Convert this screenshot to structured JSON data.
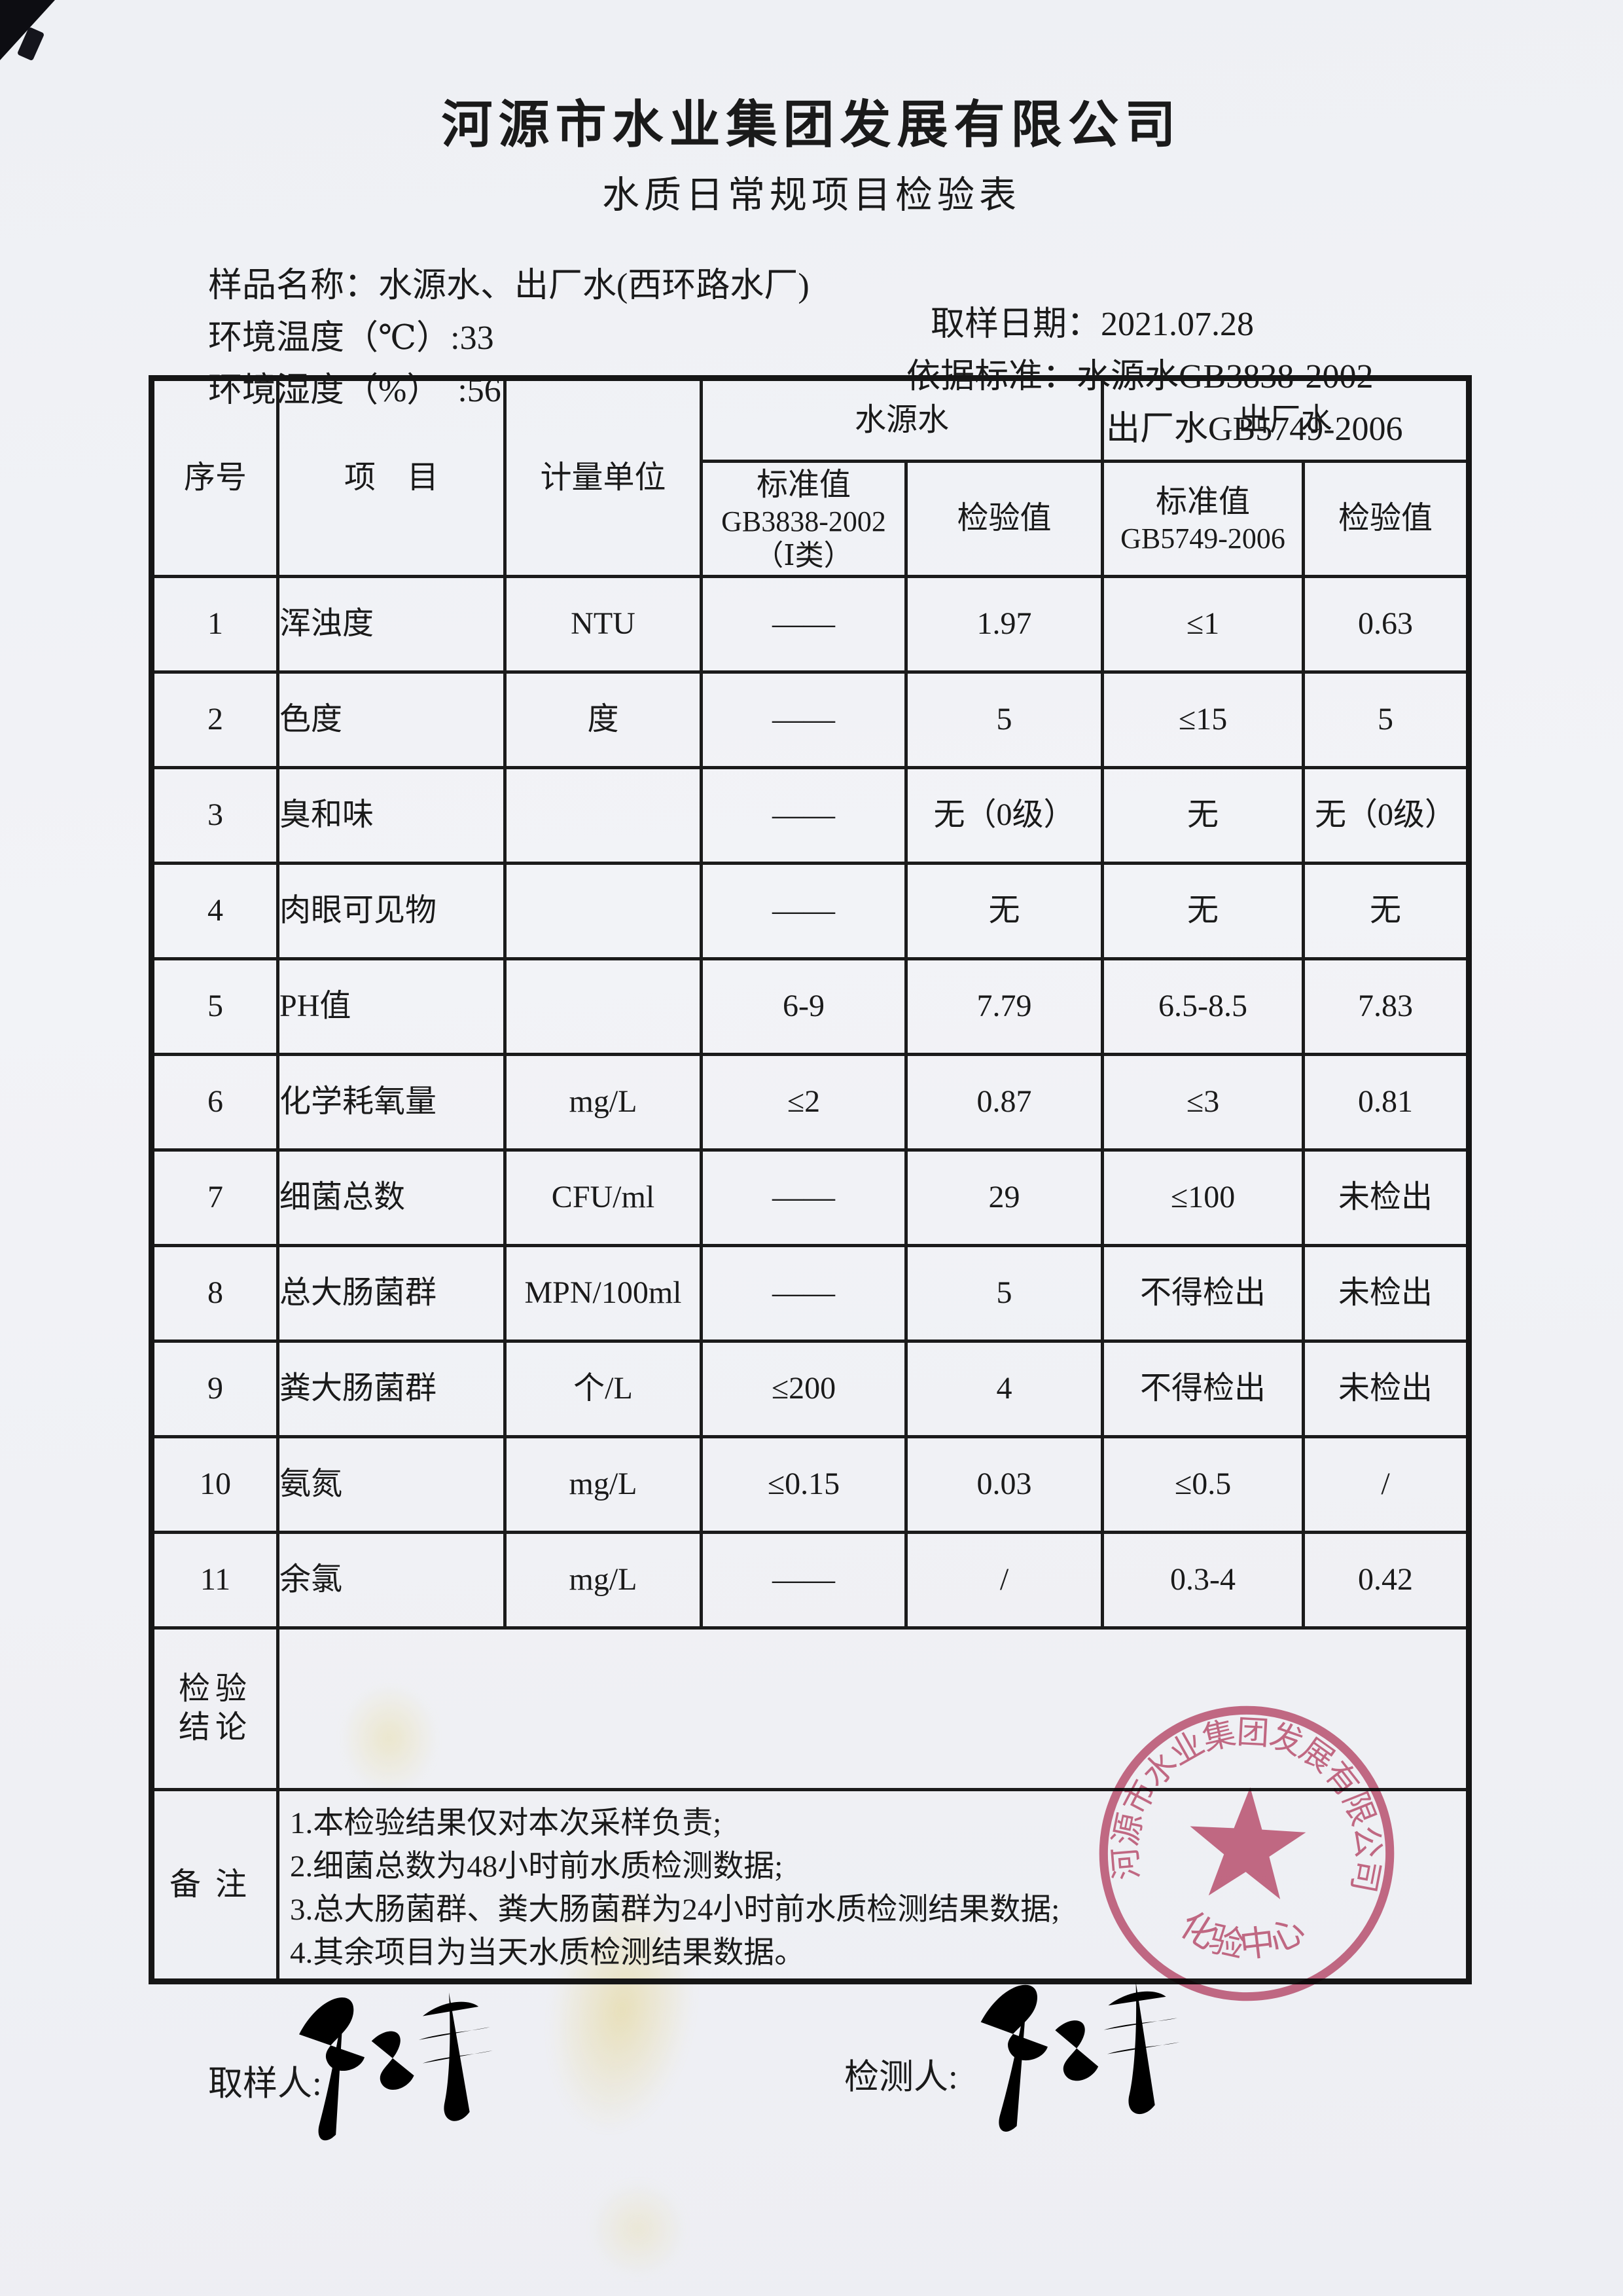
{
  "document": {
    "company": "河源市水业集团发展有限公司",
    "title": "水质日常规项目检验表",
    "info": {
      "sample_name": "样品名称：水源水、出厂水(西环路水厂)",
      "sample_date": "取样日期：2021.07.28",
      "env_temperature": "环境温度（℃）:33",
      "standard_basis": "依据标准：水源水GB3838-2002",
      "env_humidity": "环境湿度（%）  :56",
      "standard_outlet": "出厂水GB5749-2006"
    }
  },
  "table": {
    "headers": {
      "no": "序号",
      "item": "项　目",
      "unit": "计量单位",
      "source_group": "水源水",
      "outlet_group": "出厂水",
      "std_label": "标准值",
      "source_std_code": "GB3838-2002",
      "source_std_class": "（Ⅰ类）",
      "check_label": "检验值",
      "std_label2": "标准值",
      "outlet_std_code": "GB5749-2006",
      "check_label2": "检验值"
    },
    "rows": [
      {
        "no": "1",
        "item": "浑浊度",
        "unit": "NTU",
        "src_std": "——",
        "src_val": "1.97",
        "out_std": "≤1",
        "out_val": "0.63"
      },
      {
        "no": "2",
        "item": "色度",
        "unit": "度",
        "src_std": "——",
        "src_val": "5",
        "out_std": "≤15",
        "out_val": "5"
      },
      {
        "no": "3",
        "item": "臭和味",
        "unit": "",
        "src_std": "——",
        "src_val": "无（0级）",
        "out_std": "无",
        "out_val": "无（0级）"
      },
      {
        "no": "4",
        "item": "肉眼可见物",
        "unit": "",
        "src_std": "——",
        "src_val": "无",
        "out_std": "无",
        "out_val": "无"
      },
      {
        "no": "5",
        "item": "PH值",
        "unit": "",
        "src_std": "6-9",
        "src_val": "7.79",
        "out_std": "6.5-8.5",
        "out_val": "7.83"
      },
      {
        "no": "6",
        "item": "化学耗氧量",
        "unit": "mg/L",
        "src_std": "≤2",
        "src_val": "0.87",
        "out_std": "≤3",
        "out_val": "0.81"
      },
      {
        "no": "7",
        "item": "细菌总数",
        "unit": "CFU/ml",
        "src_std": "——",
        "src_val": "29",
        "out_std": "≤100",
        "out_val": "未检出"
      },
      {
        "no": "8",
        "item": "总大肠菌群",
        "unit": "MPN/100ml",
        "src_std": "——",
        "src_val": "5",
        "out_std": "不得检出",
        "out_val": "未检出"
      },
      {
        "no": "9",
        "item": "粪大肠菌群",
        "unit": "个/L",
        "src_std": "≤200",
        "src_val": "4",
        "out_std": "不得检出",
        "out_val": "未检出"
      },
      {
        "no": "10",
        "item": "氨氮",
        "unit": "mg/L",
        "src_std": "≤0.15",
        "src_val": "0.03",
        "out_std": "≤0.5",
        "out_val": "/"
      },
      {
        "no": "11",
        "item": "余氯",
        "unit": "mg/L",
        "src_std": "——",
        "src_val": "/",
        "out_std": "0.3-4",
        "out_val": "0.42"
      }
    ],
    "conclusion": {
      "label_line1": "检验",
      "label_line2": "结论",
      "value": ""
    },
    "remarks_label": "备注",
    "remarks": [
      "1.本检验结果仅对本次采样负责;",
      "2.细菌总数为48小时前水质检测数据;",
      "3.总大肠菌群、粪大肠菌群为24小时前水质检测结果数据;",
      "4.其余项目为当天水质检测结果数据。"
    ]
  },
  "footer": {
    "sampler_label": "取样人:",
    "tester_label": "检测人:"
  },
  "stamp": {
    "ring_text": "河源市水业集团发展有限公司",
    "bottom_text": "化验中心",
    "color": "#c9617e"
  }
}
